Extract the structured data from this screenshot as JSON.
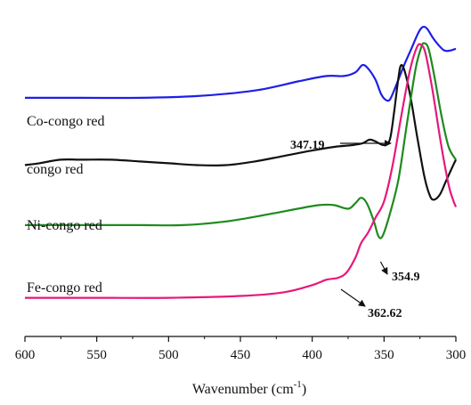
{
  "chart_data": {
    "type": "line",
    "title": "",
    "ylabel": "",
    "xlabel": {
      "main": "Wavenumber (cm",
      "sup": "-1",
      "close": ")"
    },
    "x_reversed": true,
    "xlim": [
      600,
      300
    ],
    "xticks": [
      600,
      550,
      500,
      450,
      400,
      350,
      300
    ],
    "y_axis": "none",
    "grid": false,
    "series": [
      {
        "name": "Co-congo red",
        "color": "#1f1fe6",
        "points": [
          [
            600,
            0.7
          ],
          [
            560,
            0.7
          ],
          [
            520,
            0.7
          ],
          [
            480,
            0.71
          ],
          [
            440,
            0.74
          ],
          [
            410,
            0.79
          ],
          [
            390,
            0.82
          ],
          [
            378,
            0.82
          ],
          [
            370,
            0.84
          ],
          [
            365,
            0.88
          ],
          [
            361,
            0.86
          ],
          [
            356,
            0.8
          ],
          [
            352,
            0.72
          ],
          [
            349,
            0.69
          ],
          [
            346,
            0.69
          ],
          [
            342,
            0.76
          ],
          [
            336,
            0.88
          ],
          [
            331,
            0.97
          ],
          [
            326,
            1.06
          ],
          [
            323,
            1.09
          ],
          [
            320,
            1.08
          ],
          [
            316,
            1.03
          ],
          [
            312,
            0.99
          ],
          [
            308,
            0.96
          ],
          [
            304,
            0.96
          ],
          [
            300,
            0.97
          ]
        ]
      },
      {
        "name": "congo red",
        "color": "#111111",
        "points": [
          [
            600,
            0.33
          ],
          [
            590,
            0.34
          ],
          [
            575,
            0.36
          ],
          [
            560,
            0.36
          ],
          [
            540,
            0.36
          ],
          [
            520,
            0.35
          ],
          [
            500,
            0.34
          ],
          [
            480,
            0.33
          ],
          [
            460,
            0.33
          ],
          [
            440,
            0.35
          ],
          [
            420,
            0.38
          ],
          [
            400,
            0.41
          ],
          [
            385,
            0.43
          ],
          [
            372,
            0.44
          ],
          [
            365,
            0.45
          ],
          [
            360,
            0.47
          ],
          [
            356,
            0.46
          ],
          [
            350,
            0.44
          ],
          [
            346,
            0.47
          ],
          [
            343,
            0.62
          ],
          [
            340,
            0.81
          ],
          [
            338,
            0.88
          ],
          [
            335,
            0.83
          ],
          [
            331,
            0.68
          ],
          [
            327,
            0.49
          ],
          [
            322,
            0.27
          ],
          [
            318,
            0.16
          ],
          [
            315,
            0.14
          ],
          [
            311,
            0.17
          ],
          [
            307,
            0.24
          ],
          [
            303,
            0.31
          ],
          [
            300,
            0.36
          ]
        ]
      },
      {
        "name": "Ni-congo red",
        "color": "#1e8a1e",
        "points": [
          [
            600,
            0.0
          ],
          [
            560,
            0.0
          ],
          [
            520,
            0.0
          ],
          [
            490,
            0.0
          ],
          [
            460,
            0.02
          ],
          [
            430,
            0.06
          ],
          [
            410,
            0.09
          ],
          [
            395,
            0.11
          ],
          [
            385,
            0.11
          ],
          [
            375,
            0.09
          ],
          [
            370,
            0.12
          ],
          [
            366,
            0.15
          ],
          [
            362,
            0.12
          ],
          [
            357,
            0.02
          ],
          [
            354,
            -0.06
          ],
          [
            351,
            -0.06
          ],
          [
            346,
            0.06
          ],
          [
            340,
            0.25
          ],
          [
            334,
            0.56
          ],
          [
            328,
            0.86
          ],
          [
            324,
            0.98
          ],
          [
            322,
            1.0
          ],
          [
            319,
            0.97
          ],
          [
            315,
            0.82
          ],
          [
            310,
            0.6
          ],
          [
            305,
            0.43
          ],
          [
            300,
            0.36
          ]
        ]
      },
      {
        "name": "Fe-congo red",
        "color": "#e6197a",
        "points": [
          [
            600,
            -0.4
          ],
          [
            550,
            -0.4
          ],
          [
            500,
            -0.4
          ],
          [
            450,
            -0.39
          ],
          [
            420,
            -0.37
          ],
          [
            400,
            -0.33
          ],
          [
            390,
            -0.3
          ],
          [
            382,
            -0.29
          ],
          [
            376,
            -0.26
          ],
          [
            370,
            -0.18
          ],
          [
            366,
            -0.1
          ],
          [
            361,
            -0.04
          ],
          [
            356,
            0.04
          ],
          [
            350,
            0.13
          ],
          [
            344,
            0.33
          ],
          [
            338,
            0.6
          ],
          [
            332,
            0.85
          ],
          [
            327,
            0.98
          ],
          [
            324,
            0.99
          ],
          [
            321,
            0.94
          ],
          [
            316,
            0.73
          ],
          [
            310,
            0.43
          ],
          [
            305,
            0.22
          ],
          [
            302,
            0.14
          ],
          [
            300,
            0.1
          ]
        ]
      }
    ],
    "series_labels": [
      {
        "text": "Co-congo red",
        "series": 0
      },
      {
        "text": "congo red",
        "series": 1
      },
      {
        "text": "Ni-congo red",
        "series": 2
      },
      {
        "text": "Fe-congo red",
        "series": 3
      }
    ],
    "annotations": [
      {
        "text": "347.19",
        "points_to": [
          347.19,
          0.69
        ]
      },
      {
        "text": "354.9",
        "points_to": [
          354.9,
          -0.06
        ]
      },
      {
        "text": "362.62",
        "points_to": [
          362.62,
          -0.06
        ]
      }
    ]
  }
}
